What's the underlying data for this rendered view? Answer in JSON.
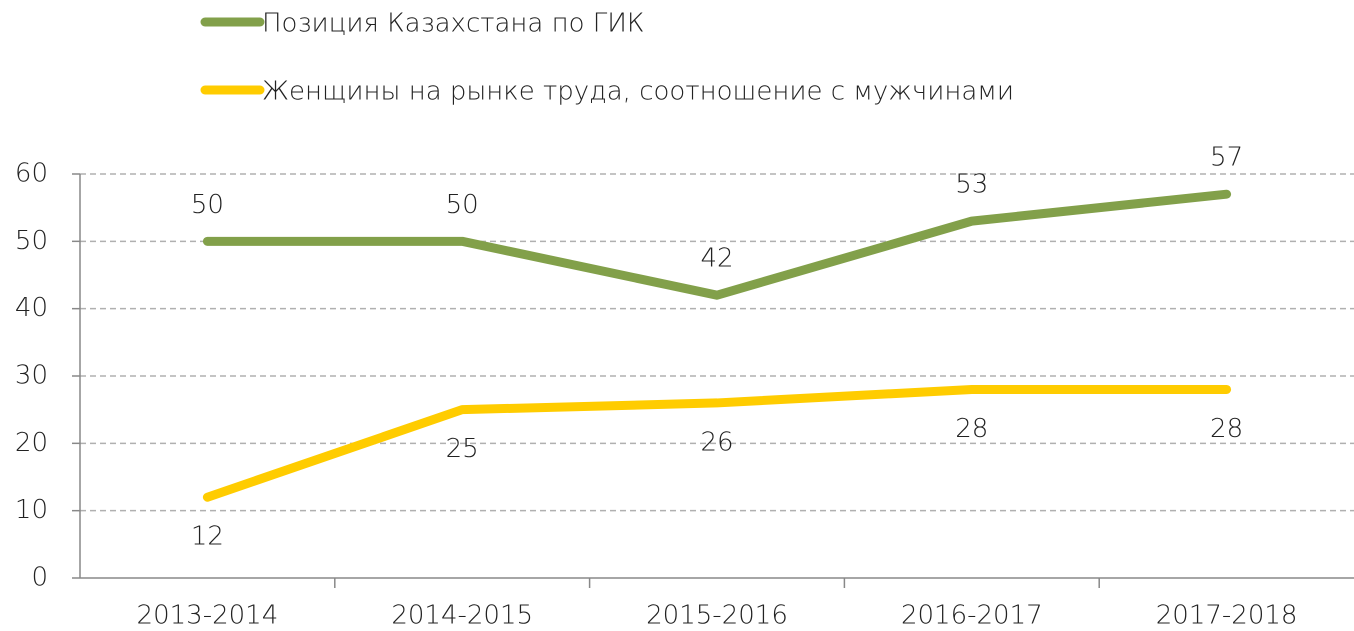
{
  "chart_data": {
    "type": "line",
    "categories": [
      "2013-2014",
      "2014-2015",
      "2015-2016",
      "2016-2017",
      "2017-2018"
    ],
    "series": [
      {
        "name": "Позиция Казахстана по ГИК",
        "color": "#82a04a",
        "values": [
          50,
          50,
          42,
          53,
          57
        ]
      },
      {
        "name": "Женщины на рынке труда, соотношение с мужчинами",
        "color": "#ffcc00",
        "values": [
          12,
          25,
          26,
          28,
          28
        ]
      }
    ],
    "ylim": [
      0,
      60
    ],
    "yticks": [
      0,
      10,
      20,
      30,
      40,
      50,
      60
    ],
    "grid": true,
    "data_labels": true
  }
}
